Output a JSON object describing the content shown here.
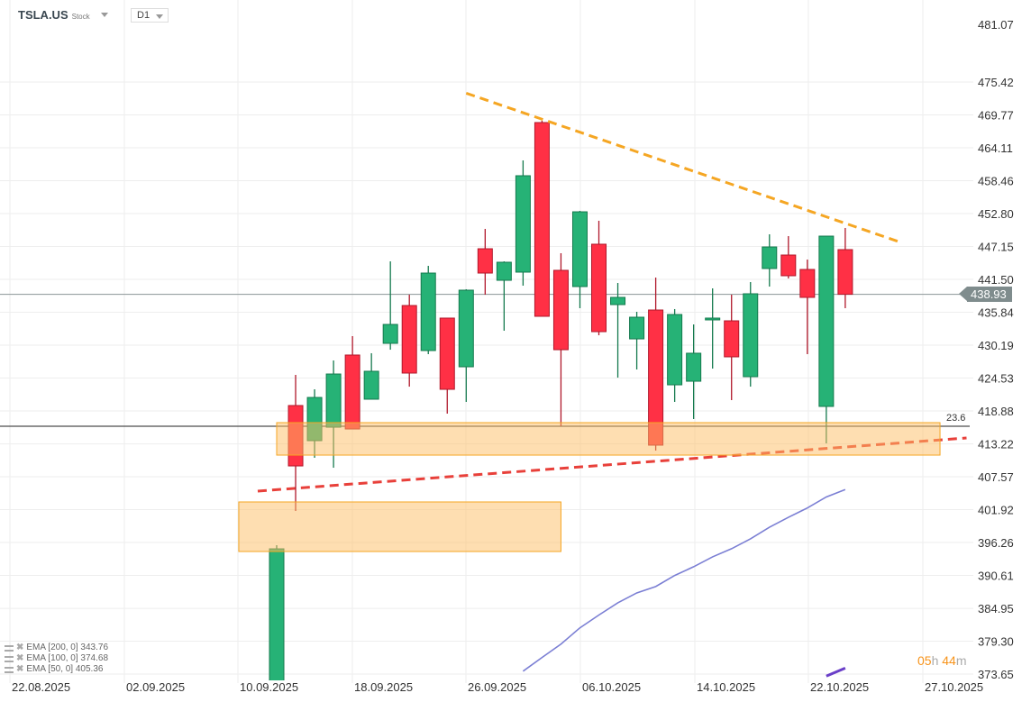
{
  "header": {
    "symbol": "TSLA.US",
    "type": "Stock",
    "timeframe": "D1"
  },
  "last_price": "438.93",
  "fib_label": "23.6",
  "timer": {
    "hours": "05",
    "h": "h",
    "minutes": "44",
    "m": "m"
  },
  "legend": [
    {
      "label": "EMA [200,  0] 343.76"
    },
    {
      "label": "EMA [100,  0] 374.68"
    },
    {
      "label": "EMA [50,  0] 405.36"
    }
  ],
  "colors": {
    "up": "#26b276",
    "down": "#ff3045",
    "zone": "#fdd9a6",
    "resistance": "#f5a623",
    "support": "#e8403a",
    "ema50": "#7b7fd4",
    "ema100": "#6a3fc8",
    "price_line": "#7f8c8d"
  },
  "chart_data": {
    "type": "candlestick",
    "y_ticks": [
      "481.07",
      "475.42",
      "469.77",
      "464.11",
      "458.46",
      "452.80",
      "447.15",
      "441.50",
      "435.84",
      "430.19",
      "424.53",
      "418.88",
      "413.22",
      "407.57",
      "401.92",
      "396.26",
      "390.61",
      "384.95",
      "379.30",
      "373.65"
    ],
    "x_ticks": [
      "22.08.2025",
      "02.09.2025",
      "10.09.2025",
      "18.09.2025",
      "26.09.2025",
      "06.10.2025",
      "14.10.2025",
      "22.10.2025",
      "27.10.2025"
    ],
    "ylim": [
      373.65,
      481.07
    ],
    "grid": true,
    "candles": [
      {
        "date": "10.09.2025",
        "o": 370.0,
        "h": 395.8,
        "l": 365.0,
        "c": 395.18
      },
      {
        "date": "11.09.2025",
        "o": 419.81,
        "h": 425.08,
        "l": 401.69,
        "c": 409.43
      },
      {
        "date": "12.09.2025",
        "o": 413.77,
        "h": 422.6,
        "l": 410.83,
        "c": 421.2
      },
      {
        "date": "15.09.2025",
        "o": 416.09,
        "h": 427.56,
        "l": 409.12,
        "c": 425.23
      },
      {
        "date": "16.09.2025",
        "o": 428.49,
        "h": 431.74,
        "l": 415.78,
        "c": 415.78
      },
      {
        "date": "17.09.2025",
        "o": 420.9,
        "h": 428.8,
        "l": 420.9,
        "c": 425.7
      },
      {
        "date": "18.09.2025",
        "o": 430.5,
        "h": 444.59,
        "l": 429.41,
        "c": 433.75
      },
      {
        "date": "19.09.2025",
        "o": 437.0,
        "h": 438.86,
        "l": 423.06,
        "c": 425.39
      },
      {
        "date": "22.09.2025",
        "o": 429.26,
        "h": 443.82,
        "l": 428.64,
        "c": 442.58
      },
      {
        "date": "23.09.2025",
        "o": 434.84,
        "h": 434.84,
        "l": 418.42,
        "c": 422.6
      },
      {
        "date": "24.09.2025",
        "o": 426.47,
        "h": 439.79,
        "l": 420.43,
        "c": 439.64
      },
      {
        "date": "25.09.2025",
        "o": 446.76,
        "h": 450.17,
        "l": 438.86,
        "c": 442.58
      },
      {
        "date": "26.09.2025",
        "o": 441.34,
        "h": 444.59,
        "l": 432.67,
        "c": 444.44
      },
      {
        "date": "29.09.2025",
        "o": 442.74,
        "h": 461.94,
        "l": 440.41,
        "c": 459.31
      },
      {
        "date": "30.09.2025",
        "o": 468.45,
        "h": 468.76,
        "l": 435.15,
        "c": 435.15
      },
      {
        "date": "01.10.2025",
        "o": 443.05,
        "h": 445.99,
        "l": 416.25,
        "c": 429.41
      },
      {
        "date": "02.10.2025",
        "o": 440.26,
        "h": 453.27,
        "l": 436.54,
        "c": 453.11
      },
      {
        "date": "03.10.2025",
        "o": 447.54,
        "h": 451.57,
        "l": 431.89,
        "c": 432.51
      },
      {
        "date": "06.10.2025",
        "o": 437.16,
        "h": 440.88,
        "l": 424.61,
        "c": 438.4
      },
      {
        "date": "07.10.2025",
        "o": 431.27,
        "h": 435.92,
        "l": 426.01,
        "c": 434.99
      },
      {
        "date": "08.10.2025",
        "o": 436.23,
        "h": 441.81,
        "l": 412.07,
        "c": 413.0
      },
      {
        "date": "09.10.2025",
        "o": 423.37,
        "h": 436.39,
        "l": 420.43,
        "c": 435.46
      },
      {
        "date": "10.10.2025",
        "o": 423.99,
        "h": 433.75,
        "l": 417.49,
        "c": 428.8
      },
      {
        "date": "13.10.2025",
        "o": 434.53,
        "h": 439.95,
        "l": 426.16,
        "c": 434.84
      },
      {
        "date": "14.10.2025",
        "o": 434.37,
        "h": 438.86,
        "l": 420.74,
        "c": 428.18
      },
      {
        "date": "15.10.2025",
        "o": 424.77,
        "h": 441.03,
        "l": 423.06,
        "c": 439.02
      },
      {
        "date": "16.10.2025",
        "o": 443.36,
        "h": 449.24,
        "l": 440.26,
        "c": 447.07
      },
      {
        "date": "17.10.2025",
        "o": 445.68,
        "h": 448.93,
        "l": 441.65,
        "c": 442.12
      },
      {
        "date": "20.10.2025",
        "o": 443.2,
        "h": 444.9,
        "l": 428.64,
        "c": 438.4
      },
      {
        "date": "21.10.2025",
        "o": 419.66,
        "h": 448.93,
        "l": 413.31,
        "c": 448.93
      },
      {
        "date": "22.10.2025",
        "o": 446.61,
        "h": 450.33,
        "l": 436.54,
        "c": 438.93
      }
    ],
    "ema50": {
      "start_index": 13,
      "values": [
        374.15,
        376.5,
        378.8,
        381.6,
        383.8,
        385.9,
        387.6,
        388.7,
        390.6,
        392.1,
        393.8,
        395.2,
        396.9,
        398.9,
        400.6,
        402.2,
        404.1,
        405.36
      ]
    },
    "ema100": {
      "start_index": 29,
      "values": [
        373.3,
        374.68
      ]
    },
    "fib_level": 416.25,
    "zones": [
      {
        "from_index": 0,
        "to_index": 35,
        "top": 416.87,
        "bottom": 411.29
      },
      {
        "from_index": -2,
        "to_index": 15,
        "top": 403.24,
        "bottom": 394.72
      }
    ],
    "trendlines": [
      {
        "kind": "resistance",
        "from_index": 10,
        "from_price": 473.5,
        "to_index": 32.8,
        "to_price": 448.0
      },
      {
        "kind": "support",
        "from_index": -1,
        "from_price": 405.1,
        "to_index": 36.4,
        "to_price": 414.24
      }
    ]
  }
}
